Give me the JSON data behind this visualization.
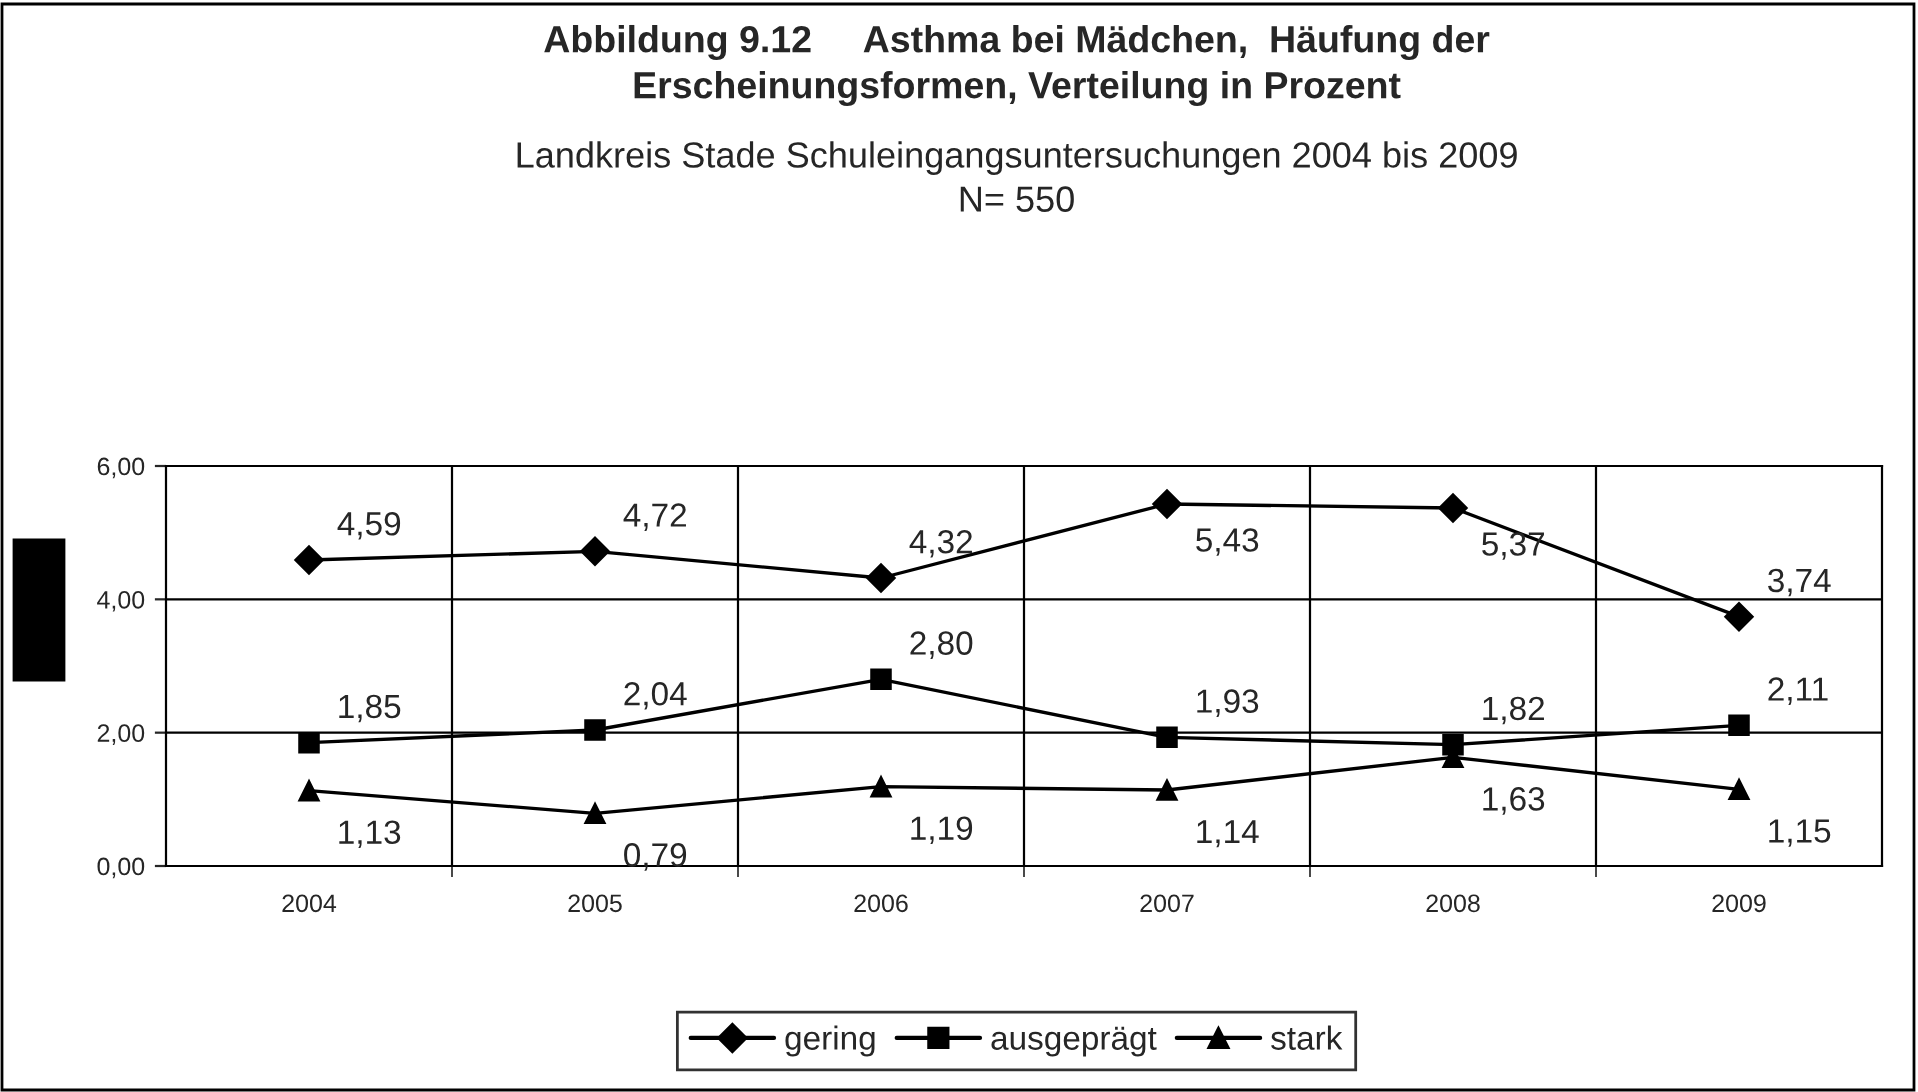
{
  "chart_data": {
    "type": "line",
    "title": "Abbildung 9.12     Asthma bei Mädchen,  Häufung der\nErscheinungsformen, Verteilung in Prozent",
    "subtitle": "Landkreis Stade Schuleingangsuntersuchungen 2004 bis 2009\nN= 550",
    "categories": [
      "2004",
      "2005",
      "2006",
      "2007",
      "2008",
      "2009"
    ],
    "series": [
      {
        "name": "gering",
        "color": "#000000",
        "marker": "diamond",
        "values": [
          4.59,
          4.72,
          4.32,
          5.43,
          5.37,
          3.74
        ],
        "value_labels": [
          "4,59",
          "4,72",
          "4,32",
          "5,43",
          "5,37",
          "3,74"
        ]
      },
      {
        "name": "ausgeprägt",
        "color": "#000000",
        "marker": "square",
        "values": [
          1.85,
          2.04,
          2.8,
          1.93,
          1.82,
          2.11
        ],
        "value_labels": [
          "1,85",
          "2,04",
          "2,80",
          "1,93",
          "1,82",
          "2,11"
        ]
      },
      {
        "name": "stark",
        "color": "#000000",
        "marker": "triangle",
        "values": [
          1.13,
          0.79,
          1.19,
          1.14,
          1.63,
          1.15
        ],
        "value_labels": [
          "1,13",
          "0,79",
          "1,19",
          "1,14",
          "1,63",
          "1,15"
        ]
      }
    ],
    "ylim": [
      0,
      6
    ],
    "yticks": [
      {
        "value": 0,
        "label": "0,00"
      },
      {
        "value": 2,
        "label": "2,00"
      },
      {
        "value": 4,
        "label": "4,00"
      },
      {
        "value": 6,
        "label": "6,00"
      }
    ],
    "grid": true,
    "legend": "bottom",
    "line_style": "solid"
  }
}
